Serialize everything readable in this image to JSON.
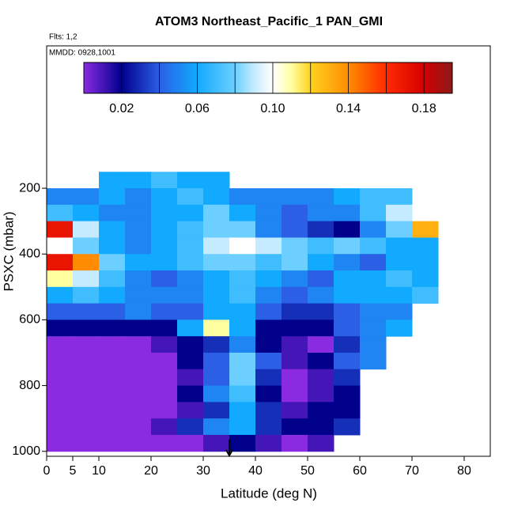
{
  "chart_data": {
    "type": "heatmap",
    "title": "ATOM3 Northeast_Pacific_1 PAN_GMI",
    "flights": "Flts: 1,2",
    "dates": "MMDD: 0928,1001",
    "xlabel": "Latitude (deg N)",
    "ylabel": "PSXC (mbar)",
    "xlim": [
      0,
      85
    ],
    "ylim": [
      1015,
      -233
    ],
    "xticks": [
      0,
      5,
      10,
      20,
      30,
      40,
      50,
      60,
      70,
      80
    ],
    "yticks": [
      200,
      400,
      600,
      800,
      1000
    ],
    "x_edges": [
      0,
      5,
      10,
      15,
      20,
      25,
      30,
      35,
      40,
      45,
      50,
      55,
      60,
      65,
      70,
      75
    ],
    "y_edges": [
      150,
      200,
      250,
      300,
      350,
      400,
      450,
      500,
      550,
      600,
      650,
      700,
      750,
      800,
      850,
      900,
      950,
      1000
    ],
    "z": [
      [
        null,
        null,
        0.06,
        0.06,
        0.07,
        0.06,
        0.06,
        null,
        null,
        null,
        null,
        null,
        null,
        null,
        null
      ],
      [
        0.05,
        0.05,
        0.06,
        0.05,
        0.06,
        0.07,
        0.06,
        0.05,
        0.05,
        0.05,
        0.05,
        0.06,
        0.07,
        0.07,
        null
      ],
      [
        0.07,
        0.06,
        0.05,
        0.05,
        0.06,
        0.06,
        0.08,
        0.06,
        0.05,
        0.04,
        0.05,
        0.05,
        0.07,
        0.09,
        null
      ],
      [
        0.17,
        0.09,
        0.06,
        0.05,
        0.06,
        0.07,
        0.08,
        0.08,
        0.05,
        0.04,
        0.03,
        0.02,
        0.05,
        0.08,
        0.13
      ],
      [
        0.1,
        0.08,
        0.06,
        0.05,
        0.06,
        0.07,
        0.09,
        0.1,
        0.09,
        0.08,
        0.07,
        0.08,
        0.07,
        0.06,
        0.06
      ],
      [
        0.17,
        0.14,
        0.08,
        0.06,
        0.06,
        0.07,
        0.08,
        0.08,
        0.07,
        0.08,
        0.06,
        0.05,
        0.04,
        0.06,
        0.06
      ],
      [
        0.11,
        0.09,
        0.07,
        0.05,
        0.04,
        0.05,
        0.06,
        0.07,
        0.06,
        0.05,
        0.04,
        0.06,
        0.06,
        0.07,
        0.06
      ],
      [
        0.06,
        0.07,
        0.06,
        0.05,
        0.05,
        0.05,
        0.06,
        0.07,
        0.05,
        0.04,
        0.05,
        0.06,
        0.06,
        0.06,
        0.07
      ],
      [
        0.04,
        0.04,
        0.04,
        0.05,
        0.04,
        0.04,
        0.06,
        0.06,
        0.04,
        0.03,
        0.03,
        0.04,
        0.05,
        0.05,
        null
      ],
      [
        0.02,
        0.02,
        0.02,
        0.02,
        0.02,
        0.06,
        0.11,
        0.06,
        0.02,
        0.02,
        0.02,
        0.04,
        0.05,
        0.06,
        null
      ],
      [
        0,
        0,
        0,
        0,
        0.01,
        0.02,
        0.03,
        0.05,
        0.02,
        0.01,
        0,
        0.03,
        0.05,
        null,
        null
      ],
      [
        0,
        0,
        0,
        0,
        0,
        0.02,
        0.04,
        0.08,
        0.04,
        0.01,
        0.02,
        0.04,
        0.05,
        null,
        null
      ],
      [
        0,
        0,
        0,
        0,
        0,
        0.01,
        0.04,
        0.08,
        0.03,
        0,
        0.01,
        0.03,
        null,
        null,
        null
      ],
      [
        0,
        0,
        0,
        0,
        0,
        0.02,
        0.05,
        0.07,
        0.02,
        0,
        0.01,
        0.02,
        null,
        null,
        null
      ],
      [
        0,
        0,
        0,
        0,
        0,
        0.01,
        0.03,
        0.06,
        0.03,
        0.01,
        0.02,
        0.02,
        null,
        null,
        null
      ],
      [
        0,
        0,
        0,
        0,
        0.01,
        0.03,
        0.05,
        0.06,
        0.03,
        0.02,
        0.02,
        0.03,
        null,
        null,
        null
      ],
      [
        0,
        0,
        0,
        0,
        0,
        0,
        0.01,
        0.02,
        0.01,
        0,
        0.01,
        null,
        null,
        null,
        null
      ]
    ],
    "clim": [
      0,
      0.195
    ],
    "colorscale": [
      [
        0,
        "#8a2be2"
      ],
      [
        0.02,
        "#00008b"
      ],
      [
        0.04,
        "#2a5fe6"
      ],
      [
        0.06,
        "#12aaff"
      ],
      [
        0.08,
        "#6ccfff"
      ],
      [
        0.09,
        "#c4ebff"
      ],
      [
        0.1,
        "#ffffff"
      ],
      [
        0.11,
        "#ffffa0"
      ],
      [
        0.12,
        "#ffd21e"
      ],
      [
        0.14,
        "#ff8c00"
      ],
      [
        0.16,
        "#ff2a00"
      ],
      [
        0.18,
        "#d40000"
      ],
      [
        0.195,
        "#8b1a1a"
      ]
    ],
    "colorbar_ticks": [
      0.02,
      0.06,
      {
        "value": 0.1,
        "label": "0.10"
      },
      0.14,
      0.18
    ],
    "colorbar_breaks": [
      0.02,
      0.04,
      0.06,
      0.08,
      0.1,
      0.12,
      0.14,
      0.16,
      0.18
    ],
    "arrow_lat": 35
  }
}
